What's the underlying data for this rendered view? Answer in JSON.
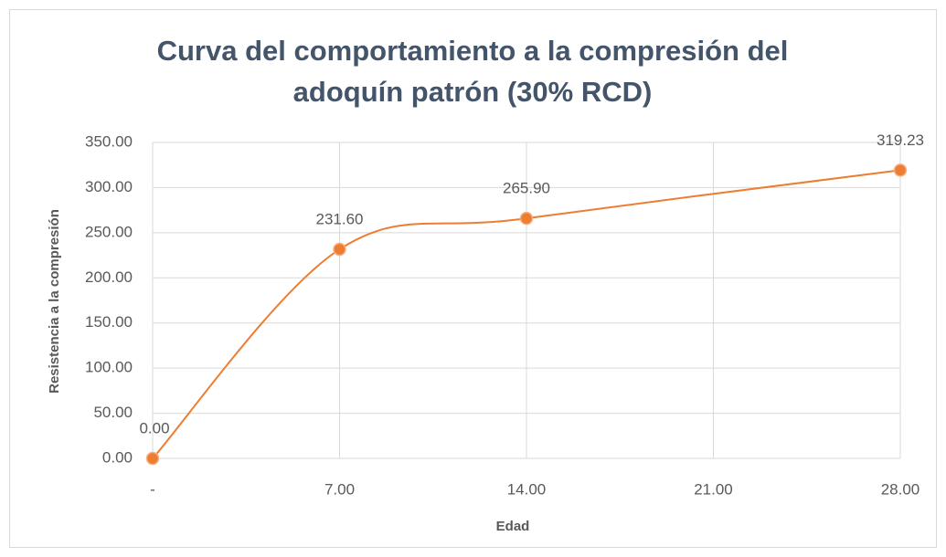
{
  "chart_data": {
    "type": "line",
    "title": [
      "Curva del comportamiento a la compresión del",
      "adoquín patrón (30% RCD)"
    ],
    "xlabel": "Edad",
    "ylabel": "Resistencia a la compresión",
    "x": [
      0,
      7,
      14,
      28
    ],
    "series": [
      {
        "name": "Resistencia",
        "color": "#ed7d31",
        "values": [
          0,
          231.6,
          265.9,
          319.23
        ],
        "value_labels": [
          "0.00",
          "231.60",
          "265.90",
          "319.23"
        ]
      }
    ],
    "xlim": [
      0,
      28
    ],
    "xticks": [
      {
        "value": 0,
        "label": "-"
      },
      {
        "value": 7,
        "label": "7.00"
      },
      {
        "value": 14,
        "label": "14.00"
      },
      {
        "value": 21,
        "label": "21.00"
      },
      {
        "value": 28,
        "label": "28.00"
      }
    ],
    "ylim": [
      0,
      350
    ],
    "yticks": [
      {
        "value": 0,
        "label": "0.00"
      },
      {
        "value": 50,
        "label": "50.00"
      },
      {
        "value": 100,
        "label": "100.00"
      },
      {
        "value": 150,
        "label": "150.00"
      },
      {
        "value": 200,
        "label": "200.00"
      },
      {
        "value": 250,
        "label": "250.00"
      },
      {
        "value": 300,
        "label": "300.00"
      },
      {
        "value": 350,
        "label": "350.00"
      }
    ],
    "grid": true,
    "smooth": true
  }
}
